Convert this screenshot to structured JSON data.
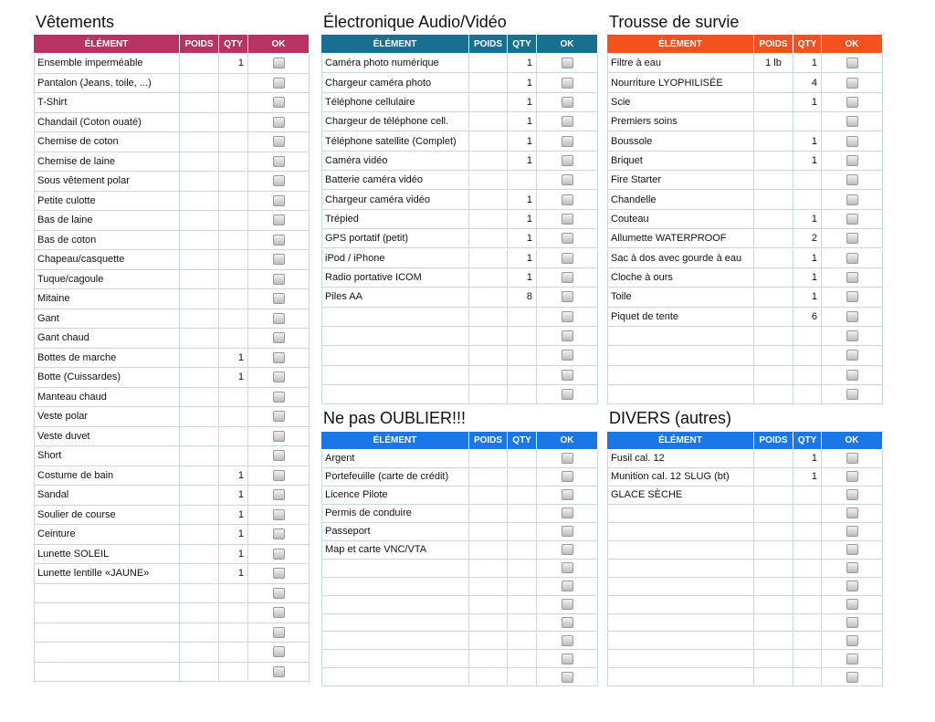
{
  "sections": [
    {
      "title": "Vêtements",
      "headers": [
        "ÉLÉMENT",
        "POIDS",
        "QTY",
        "OK"
      ],
      "rows": [
        {
          "item": "Ensemble imperméable",
          "qty": 1
        },
        {
          "item": "Pantalon (Jeans, toile, ...)"
        },
        {
          "item": "T-Shirt"
        },
        {
          "item": "Chandail (Coton ouaté)"
        },
        {
          "item": "Chemise de coton"
        },
        {
          "item": "Chemise de laine"
        },
        {
          "item": "Sous vêtement polar"
        },
        {
          "item": "Petite culotte"
        },
        {
          "item": "Bas de laine"
        },
        {
          "item": "Bas de coton"
        },
        {
          "item": "Chapeau/casquette"
        },
        {
          "item": "Tuque/cagoule"
        },
        {
          "item": "Mitaine"
        },
        {
          "item": "Gant"
        },
        {
          "item": "Gant chaud"
        },
        {
          "item": "Bottes de marche",
          "qty": 1
        },
        {
          "item": "Botte (Cuissardes)",
          "qty": 1
        },
        {
          "item": "Manteau chaud"
        },
        {
          "item": "Veste polar"
        },
        {
          "item": "Veste duvet"
        },
        {
          "item": "Short"
        },
        {
          "item": "Costume de bain",
          "qty": 1
        },
        {
          "item": "Sandal",
          "qty": 1
        },
        {
          "item": "Soulier de course",
          "qty": 1
        },
        {
          "item": "Ceinture",
          "qty": 1
        },
        {
          "item": "Lunette SOLEIL",
          "qty": 1
        },
        {
          "item": "Lunette lentille «JAUNE»",
          "qty": 1
        }
      ]
    },
    {
      "title": "Électronique Audio/Vidéo",
      "headers": [
        "ÉLÉMENT",
        "POIDS",
        "QTY",
        "OK"
      ],
      "rows": [
        {
          "item": "Caméra photo numérique",
          "qty": 1
        },
        {
          "item": "Chargeur caméra photo",
          "qty": 1
        },
        {
          "item": "Téléphone cellulaire",
          "qty": 1
        },
        {
          "item": "Chargeur de téléphone cell.",
          "qty": 1
        },
        {
          "item": "Téléphone satellite (Complet)",
          "qty": 1
        },
        {
          "item": "Caméra vidéo",
          "qty": 1
        },
        {
          "item": "Batterie caméra vidéo"
        },
        {
          "item": "Chargeur caméra vidéo",
          "qty": 1
        },
        {
          "item": "Trépied",
          "qty": 1
        },
        {
          "item": "GPS portatif (petit)",
          "qty": 1
        },
        {
          "item": "iPod / iPhone",
          "qty": 1
        },
        {
          "item": "Radio portative ICOM",
          "qty": 1
        },
        {
          "item": "Piles AA",
          "qty": 8
        }
      ]
    },
    {
      "title": "Trousse de survie",
      "headers": [
        "ÉLÉMENT",
        "POIDS",
        "QTY",
        "OK"
      ],
      "rows": [
        {
          "item": "Filtre à eau",
          "poids": "1 lb",
          "qty": 1
        },
        {
          "item": "Nourriture LYOPHILISÉE",
          "qty": 4
        },
        {
          "item": "Scie",
          "qty": 1
        },
        {
          "item": "Premiers soins"
        },
        {
          "item": "Boussole",
          "qty": 1
        },
        {
          "item": "Briquet",
          "qty": 1
        },
        {
          "item": "Fire Starter"
        },
        {
          "item": "Chandelle"
        },
        {
          "item": "Couteau",
          "qty": 1
        },
        {
          "item": "Allumette WATERPROOF",
          "qty": 2
        },
        {
          "item": "Sac à dos avec gourde à eau",
          "qty": 1
        },
        {
          "item": "Cloche à ours",
          "qty": 1
        },
        {
          "item": "Toile",
          "qty": 1
        },
        {
          "item": "Piquet de tente",
          "qty": 6
        }
      ]
    },
    {
      "title": "Ne pas OUBLIER!!!",
      "headers": [
        "ÉLÉMENT",
        "POIDS",
        "QTY",
        "OK"
      ],
      "rows": [
        {
          "item": "Argent"
        },
        {
          "item": "Portefeuille (carte de crédit)"
        },
        {
          "item": "Licence Pilote"
        },
        {
          "item": "Permis de conduire"
        },
        {
          "item": "Passeport"
        },
        {
          "item": "Map et carte VNC/VTA"
        }
      ]
    },
    {
      "title": "DIVERS (autres)",
      "headers": [
        "ÉLÉMENT",
        "POIDS",
        "QTY",
        "OK"
      ],
      "rows": [
        {
          "item": "Fusil cal. 12",
          "qty": 1
        },
        {
          "item": "Munition cal. 12 SLUG (bt)",
          "qty": 1
        },
        {
          "item": "GLACE SÈCHE"
        }
      ]
    }
  ]
}
